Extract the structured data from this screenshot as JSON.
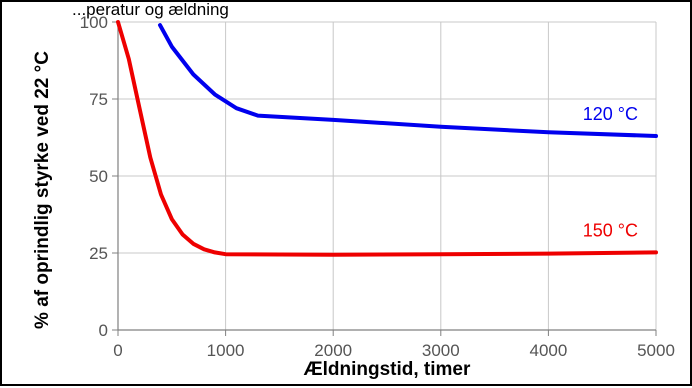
{
  "chart_data": {
    "type": "line",
    "title": "...peratur og ældning",
    "xlabel": "Ældningstid, timer",
    "ylabel": "% af oprindlig styrke ved 22 °C",
    "xlim": [
      0,
      5000
    ],
    "ylim": [
      0,
      100
    ],
    "x_ticks": [
      "0",
      "1000",
      "2000",
      "3000",
      "4000",
      "5000"
    ],
    "y_ticks": [
      "0",
      "25",
      "50",
      "75",
      "100"
    ],
    "grid": true,
    "series": [
      {
        "name": "120 °C",
        "color": "#0000ee",
        "points": [
          [
            390,
            99
          ],
          [
            500,
            92
          ],
          [
            700,
            83
          ],
          [
            900,
            76.5
          ],
          [
            1100,
            72
          ],
          [
            1300,
            69.6
          ],
          [
            2000,
            68.2
          ],
          [
            3000,
            66
          ],
          [
            4000,
            64.2
          ],
          [
            5000,
            63
          ]
        ]
      },
      {
        "name": "150 °C",
        "color": "#ee0000",
        "points": [
          [
            0,
            100
          ],
          [
            100,
            88
          ],
          [
            200,
            72
          ],
          [
            300,
            56
          ],
          [
            400,
            44
          ],
          [
            500,
            36
          ],
          [
            600,
            31
          ],
          [
            700,
            28
          ],
          [
            800,
            26.2
          ],
          [
            900,
            25.2
          ],
          [
            1000,
            24.6
          ],
          [
            2000,
            24.4
          ],
          [
            3000,
            24.6
          ],
          [
            4000,
            24.8
          ],
          [
            5000,
            25.2
          ]
        ]
      }
    ]
  }
}
